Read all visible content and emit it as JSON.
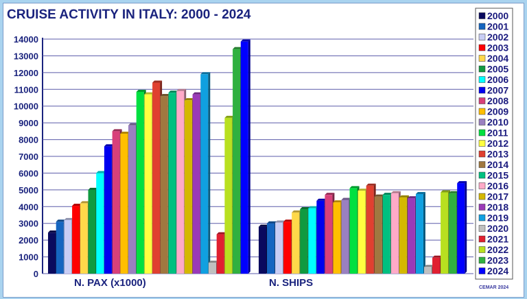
{
  "chart_data": {
    "type": "bar",
    "title": "CRUISE ACTIVITY IN ITALY: 2000 - 2024",
    "categories": [
      "N. PAX (x1000)",
      "N. SHIPS"
    ],
    "ylim": [
      0,
      14000
    ],
    "yticks": [
      "0",
      "1000",
      "2000",
      "3000",
      "4000",
      "5000",
      "6000",
      "7000",
      "8000",
      "9000",
      "10000",
      "11000",
      "12000",
      "13000",
      "14000"
    ],
    "grid": true,
    "legend_position": "right",
    "series": [
      {
        "name": "2000",
        "color": "#0a0a5e",
        "values": [
          2450,
          2800
        ]
      },
      {
        "name": "2001",
        "color": "#1565c0",
        "values": [
          3100,
          3000
        ]
      },
      {
        "name": "2002",
        "color": "#c8cdf5",
        "values": [
          3200,
          3050
        ]
      },
      {
        "name": "2003",
        "color": "#ff0000",
        "values": [
          4050,
          3100
        ]
      },
      {
        "name": "2004",
        "color": "#ffd84a",
        "values": [
          4200,
          3650
        ]
      },
      {
        "name": "2005",
        "color": "#109a40",
        "values": [
          5000,
          3850
        ]
      },
      {
        "name": "2006",
        "color": "#00ffff",
        "values": [
          6000,
          3900
        ]
      },
      {
        "name": "2007",
        "color": "#0000f0",
        "values": [
          7600,
          4350
        ]
      },
      {
        "name": "2008",
        "color": "#d8407a",
        "values": [
          8500,
          4700
        ]
      },
      {
        "name": "2009",
        "color": "#ffbf00",
        "values": [
          8350,
          4250
        ]
      },
      {
        "name": "2010",
        "color": "#9a80c0",
        "values": [
          8850,
          4400
        ]
      },
      {
        "name": "2011",
        "color": "#00e040",
        "values": [
          10850,
          5100
        ]
      },
      {
        "name": "2012",
        "color": "#ffff40",
        "values": [
          10700,
          4950
        ]
      },
      {
        "name": "2013",
        "color": "#e04030",
        "values": [
          11400,
          5250
        ]
      },
      {
        "name": "2014",
        "color": "#a07840",
        "values": [
          10600,
          4600
        ]
      },
      {
        "name": "2015",
        "color": "#00c080",
        "values": [
          10800,
          4700
        ]
      },
      {
        "name": "2016",
        "color": "#ffaac8",
        "values": [
          10900,
          4800
        ]
      },
      {
        "name": "2017",
        "color": "#d4b800",
        "values": [
          10350,
          4550
        ]
      },
      {
        "name": "2018",
        "color": "#9a3ab8",
        "values": [
          10700,
          4500
        ]
      },
      {
        "name": "2019",
        "color": "#10a0e0",
        "values": [
          11900,
          4750
        ]
      },
      {
        "name": "2020",
        "color": "#c0c0c0",
        "values": [
          650,
          400
        ]
      },
      {
        "name": "2021",
        "color": "#e02030",
        "values": [
          2350,
          950
        ]
      },
      {
        "name": "2022",
        "color": "#b8e020",
        "values": [
          9300,
          4850
        ]
      },
      {
        "name": "2023",
        "color": "#30b040",
        "values": [
          13400,
          4800
        ]
      },
      {
        "name": "2024",
        "color": "#0000ff",
        "values": [
          13850,
          5400
        ]
      }
    ],
    "credit": "CEMAR 2024"
  }
}
